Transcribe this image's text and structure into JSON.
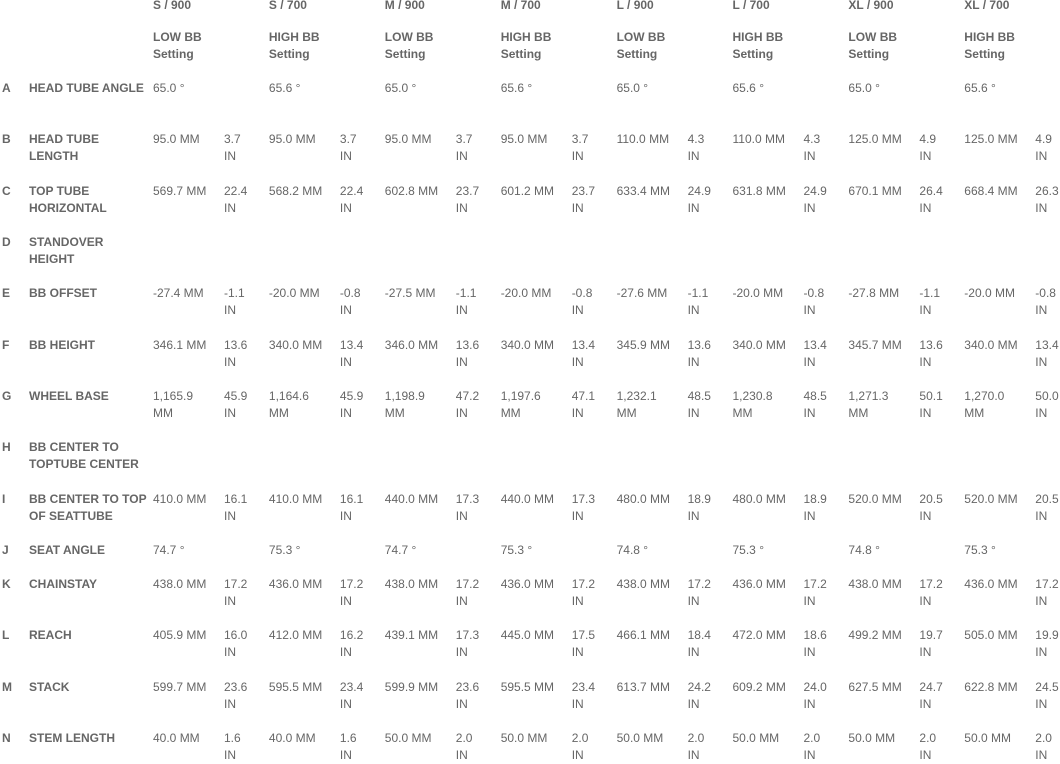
{
  "columns": [
    {
      "size": "S / 900",
      "setting_line1": "LOW BB",
      "setting_line2": "Setting"
    },
    {
      "size": "S / 700",
      "setting_line1": "HIGH BB",
      "setting_line2": "Setting"
    },
    {
      "size": "M / 900",
      "setting_line1": "LOW BB",
      "setting_line2": "Setting"
    },
    {
      "size": "M / 700",
      "setting_line1": "HIGH BB",
      "setting_line2": "Setting"
    },
    {
      "size": "L / 900",
      "setting_line1": "LOW BB",
      "setting_line2": "Setting"
    },
    {
      "size": "L / 700",
      "setting_line1": "HIGH BB",
      "setting_line2": "Setting"
    },
    {
      "size": "XL / 900",
      "setting_line1": "LOW BB",
      "setting_line2": "Setting"
    },
    {
      "size": "XL / 700",
      "setting_line1": "HIGH BB",
      "setting_line2": "Setting"
    }
  ],
  "rows": [
    {
      "letter": "A",
      "label": "HEAD TUBE ANGLE",
      "values": [
        {
          "mm": "65.0 °"
        },
        {
          "mm": "65.6 °"
        },
        {
          "mm": "65.0 °"
        },
        {
          "mm": "65.6 °"
        },
        {
          "mm": "65.0 °"
        },
        {
          "mm": "65.6 °"
        },
        {
          "mm": "65.0 °"
        },
        {
          "mm": "65.6 °"
        }
      ]
    },
    {
      "letter": "B",
      "label": "HEAD TUBE LENGTH",
      "values": [
        {
          "mm": "95.0 MM",
          "in": "3.7 IN"
        },
        {
          "mm": "95.0 MM",
          "in": "3.7 IN"
        },
        {
          "mm": "95.0 MM",
          "in": "3.7 IN"
        },
        {
          "mm": "95.0 MM",
          "in": "3.7 IN"
        },
        {
          "mm": "110.0 MM",
          "in": "4.3 IN"
        },
        {
          "mm": "110.0 MM",
          "in": "4.3 IN"
        },
        {
          "mm": "125.0 MM",
          "in": "4.9 IN"
        },
        {
          "mm": "125.0 MM",
          "in": "4.9 IN"
        }
      ]
    },
    {
      "letter": "C",
      "label": "TOP TUBE HORIZONTAL",
      "values": [
        {
          "mm": "569.7 MM",
          "in": "22.4 IN"
        },
        {
          "mm": "568.2 MM",
          "in": "22.4 IN"
        },
        {
          "mm": "602.8 MM",
          "in": "23.7 IN"
        },
        {
          "mm": "601.2 MM",
          "in": "23.7 IN"
        },
        {
          "mm": "633.4 MM",
          "in": "24.9 IN"
        },
        {
          "mm": "631.8 MM",
          "in": "24.9 IN"
        },
        {
          "mm": "670.1 MM",
          "in": "26.4 IN"
        },
        {
          "mm": "668.4 MM",
          "in": "26.3 IN"
        }
      ]
    },
    {
      "letter": "D",
      "label": "STANDOVER HEIGHT",
      "values": []
    },
    {
      "letter": "E",
      "label": "BB OFFSET",
      "values": [
        {
          "mm": "-27.4 MM",
          "in": "-1.1 IN"
        },
        {
          "mm": "-20.0 MM",
          "in": "-0.8 IN"
        },
        {
          "mm": "-27.5 MM",
          "in": "-1.1 IN"
        },
        {
          "mm": "-20.0 MM",
          "in": "-0.8 IN"
        },
        {
          "mm": "-27.6 MM",
          "in": "-1.1 IN"
        },
        {
          "mm": "-20.0 MM",
          "in": "-0.8 IN"
        },
        {
          "mm": "-27.8 MM",
          "in": "-1.1 IN"
        },
        {
          "mm": "-20.0 MM",
          "in": "-0.8 IN"
        }
      ]
    },
    {
      "letter": "F",
      "label": "BB HEIGHT",
      "values": [
        {
          "mm": "346.1 MM",
          "in": "13.6 IN"
        },
        {
          "mm": "340.0 MM",
          "in": "13.4 IN"
        },
        {
          "mm": "346.0 MM",
          "in": "13.6 IN"
        },
        {
          "mm": "340.0 MM",
          "in": "13.4 IN"
        },
        {
          "mm": "345.9 MM",
          "in": "13.6 IN"
        },
        {
          "mm": "340.0 MM",
          "in": "13.4 IN"
        },
        {
          "mm": "345.7 MM",
          "in": "13.6 IN"
        },
        {
          "mm": "340.0 MM",
          "in": "13.4 IN"
        }
      ]
    },
    {
      "letter": "G",
      "label": "WHEEL BASE",
      "values": [
        {
          "mm": "1,165.9 MM",
          "in": "45.9 IN"
        },
        {
          "mm": "1,164.6 MM",
          "in": "45.9 IN"
        },
        {
          "mm": "1,198.9 MM",
          "in": "47.2 IN"
        },
        {
          "mm": "1,197.6 MM",
          "in": "47.1 IN"
        },
        {
          "mm": "1,232.1 MM",
          "in": "48.5 IN"
        },
        {
          "mm": "1,230.8 MM",
          "in": "48.5 IN"
        },
        {
          "mm": "1,271.3 MM",
          "in": "50.1 IN"
        },
        {
          "mm": "1,270.0 MM",
          "in": "50.0 IN"
        }
      ]
    },
    {
      "letter": "H",
      "label": "BB CENTER TO TOPTUBE CENTER",
      "values": []
    },
    {
      "letter": "I",
      "label": "BB CENTER TO TOP OF SEATTUBE",
      "values": [
        {
          "mm": "410.0 MM",
          "in": "16.1 IN"
        },
        {
          "mm": "410.0 MM",
          "in": "16.1 IN"
        },
        {
          "mm": "440.0 MM",
          "in": "17.3 IN"
        },
        {
          "mm": "440.0 MM",
          "in": "17.3 IN"
        },
        {
          "mm": "480.0 MM",
          "in": "18.9 IN"
        },
        {
          "mm": "480.0 MM",
          "in": "18.9 IN"
        },
        {
          "mm": "520.0 MM",
          "in": "20.5 IN"
        },
        {
          "mm": "520.0 MM",
          "in": "20.5 IN"
        }
      ]
    },
    {
      "letter": "J",
      "label": "SEAT ANGLE",
      "values": [
        {
          "mm": "74.7 °"
        },
        {
          "mm": "75.3 °"
        },
        {
          "mm": "74.7 °"
        },
        {
          "mm": "75.3 °"
        },
        {
          "mm": "74.8 °"
        },
        {
          "mm": "75.3 °"
        },
        {
          "mm": "74.8 °"
        },
        {
          "mm": "75.3 °"
        }
      ]
    },
    {
      "letter": "K",
      "label": "CHAINSTAY",
      "values": [
        {
          "mm": "438.0 MM",
          "in": "17.2 IN"
        },
        {
          "mm": "436.0 MM",
          "in": "17.2 IN"
        },
        {
          "mm": "438.0 MM",
          "in": "17.2 IN"
        },
        {
          "mm": "436.0 MM",
          "in": "17.2 IN"
        },
        {
          "mm": "438.0 MM",
          "in": "17.2 IN"
        },
        {
          "mm": "436.0 MM",
          "in": "17.2 IN"
        },
        {
          "mm": "438.0 MM",
          "in": "17.2 IN"
        },
        {
          "mm": "436.0 MM",
          "in": "17.2 IN"
        }
      ]
    },
    {
      "letter": "L",
      "label": "REACH",
      "values": [
        {
          "mm": "405.9 MM",
          "in": "16.0 IN"
        },
        {
          "mm": "412.0 MM",
          "in": "16.2 IN"
        },
        {
          "mm": "439.1 MM",
          "in": "17.3 IN"
        },
        {
          "mm": "445.0 MM",
          "in": "17.5 IN"
        },
        {
          "mm": "466.1 MM",
          "in": "18.4 IN"
        },
        {
          "mm": "472.0 MM",
          "in": "18.6 IN"
        },
        {
          "mm": "499.2 MM",
          "in": "19.7 IN"
        },
        {
          "mm": "505.0 MM",
          "in": "19.9 IN"
        }
      ]
    },
    {
      "letter": "M",
      "label": "STACK",
      "values": [
        {
          "mm": "599.7 MM",
          "in": "23.6 IN"
        },
        {
          "mm": "595.5 MM",
          "in": "23.4 IN"
        },
        {
          "mm": "599.9 MM",
          "in": "23.6 IN"
        },
        {
          "mm": "595.5 MM",
          "in": "23.4 IN"
        },
        {
          "mm": "613.7 MM",
          "in": "24.2 IN"
        },
        {
          "mm": "609.2 MM",
          "in": "24.0 IN"
        },
        {
          "mm": "627.5 MM",
          "in": "24.7 IN"
        },
        {
          "mm": "622.8 MM",
          "in": "24.5 IN"
        }
      ]
    },
    {
      "letter": "N",
      "label": "STEM LENGTH",
      "values": [
        {
          "mm": "40.0 MM",
          "in": "1.6 IN"
        },
        {
          "mm": "40.0 MM",
          "in": "1.6 IN"
        },
        {
          "mm": "50.0 MM",
          "in": "2.0 IN"
        },
        {
          "mm": "50.0 MM",
          "in": "2.0 IN"
        },
        {
          "mm": "50.0 MM",
          "in": "2.0 IN"
        },
        {
          "mm": "50.0 MM",
          "in": "2.0 IN"
        },
        {
          "mm": "50.0 MM",
          "in": "2.0 IN"
        },
        {
          "mm": "50.0 MM",
          "in": "2.0 IN"
        }
      ]
    }
  ]
}
